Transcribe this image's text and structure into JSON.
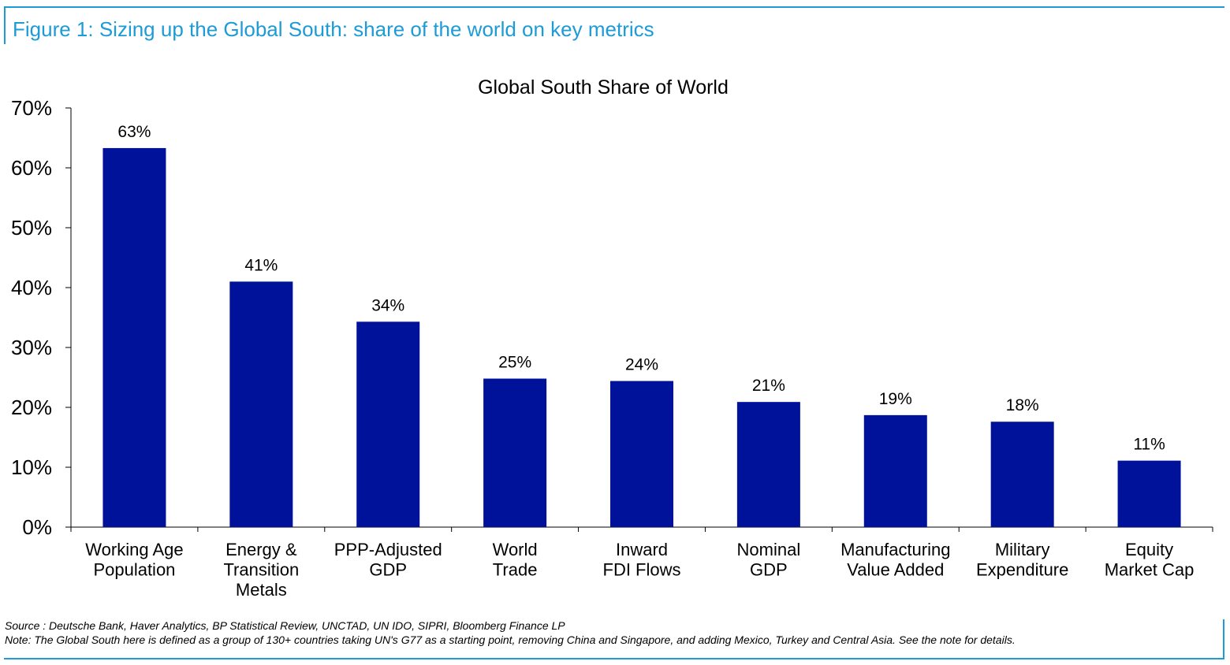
{
  "figure_title": "Figure 1: Sizing up the Global South: share of the world on key metrics",
  "source": "Source : Deutsche Bank, Haver Analytics, BP Statistical Review, UNCTAD, UN IDO, SIPRI, Bloomberg Finance LP",
  "note": "Note: The Global South here is defined as a group of 130+ countries taking UN's G77 as a starting point, removing China and Singapore, and adding Mexico, Turkey and Central Asia. See the note for details.",
  "colors": {
    "accent": "#1d9bd6",
    "bar": "#00129a"
  },
  "chart_data": {
    "type": "bar",
    "title": "Global South Share of World",
    "xlabel": "",
    "ylabel": "",
    "ylim": [
      0,
      70
    ],
    "yticks": [
      0,
      10,
      20,
      30,
      40,
      50,
      60,
      70
    ],
    "ytick_labels": [
      "0%",
      "10%",
      "20%",
      "30%",
      "40%",
      "50%",
      "60%",
      "70%"
    ],
    "grid": false,
    "legend": "none",
    "categories": [
      [
        "Working Age",
        "Population"
      ],
      [
        "Energy &",
        "Transition",
        "Metals"
      ],
      [
        "PPP-Adjusted",
        "GDP"
      ],
      [
        "World",
        "Trade"
      ],
      [
        "Inward",
        "FDI Flows"
      ],
      [
        "Nominal",
        "GDP"
      ],
      [
        "Manufacturing",
        "Value Added"
      ],
      [
        "Military",
        "Expenditure"
      ],
      [
        "Equity",
        "Market Cap"
      ]
    ],
    "values": [
      63.3,
      41.0,
      34.3,
      24.8,
      24.4,
      20.9,
      18.7,
      17.6,
      11.1
    ],
    "data_labels": [
      "63%",
      "41%",
      "34%",
      "25%",
      "24%",
      "21%",
      "19%",
      "18%",
      "11%"
    ]
  }
}
